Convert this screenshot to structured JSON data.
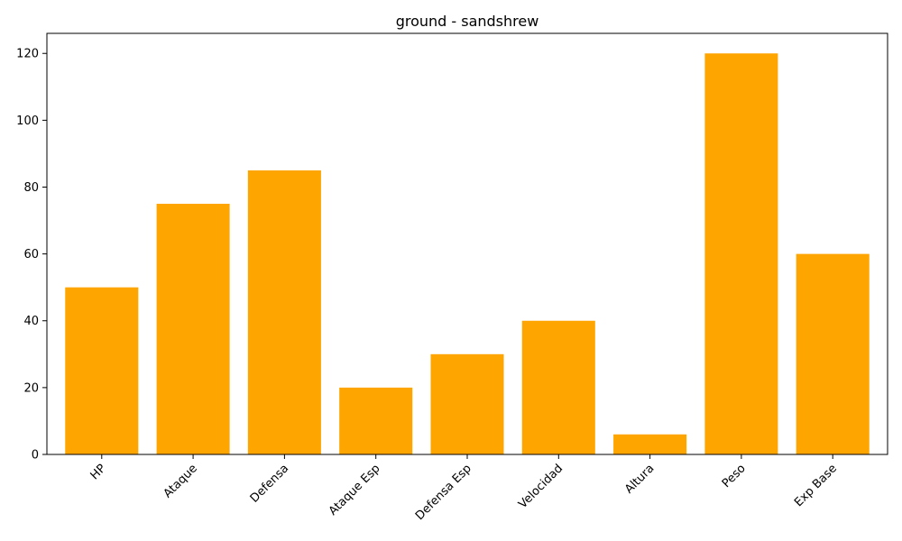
{
  "chart_data": {
    "type": "bar",
    "title": "ground - sandshrew",
    "xlabel": "",
    "ylabel": "",
    "categories": [
      "HP",
      "Ataque",
      "Defensa",
      "Ataque Esp",
      "Defensa Esp",
      "Velocidad",
      "Altura",
      "Peso",
      "Exp Base"
    ],
    "values": [
      50,
      75,
      85,
      20,
      30,
      40,
      6,
      120,
      60
    ],
    "ylim": [
      0,
      126
    ],
    "yticks": [
      0,
      20,
      40,
      60,
      80,
      100,
      120
    ],
    "bar_color": "#FFA500",
    "grid": false,
    "legend": "none",
    "xtick_rotation": 45
  }
}
